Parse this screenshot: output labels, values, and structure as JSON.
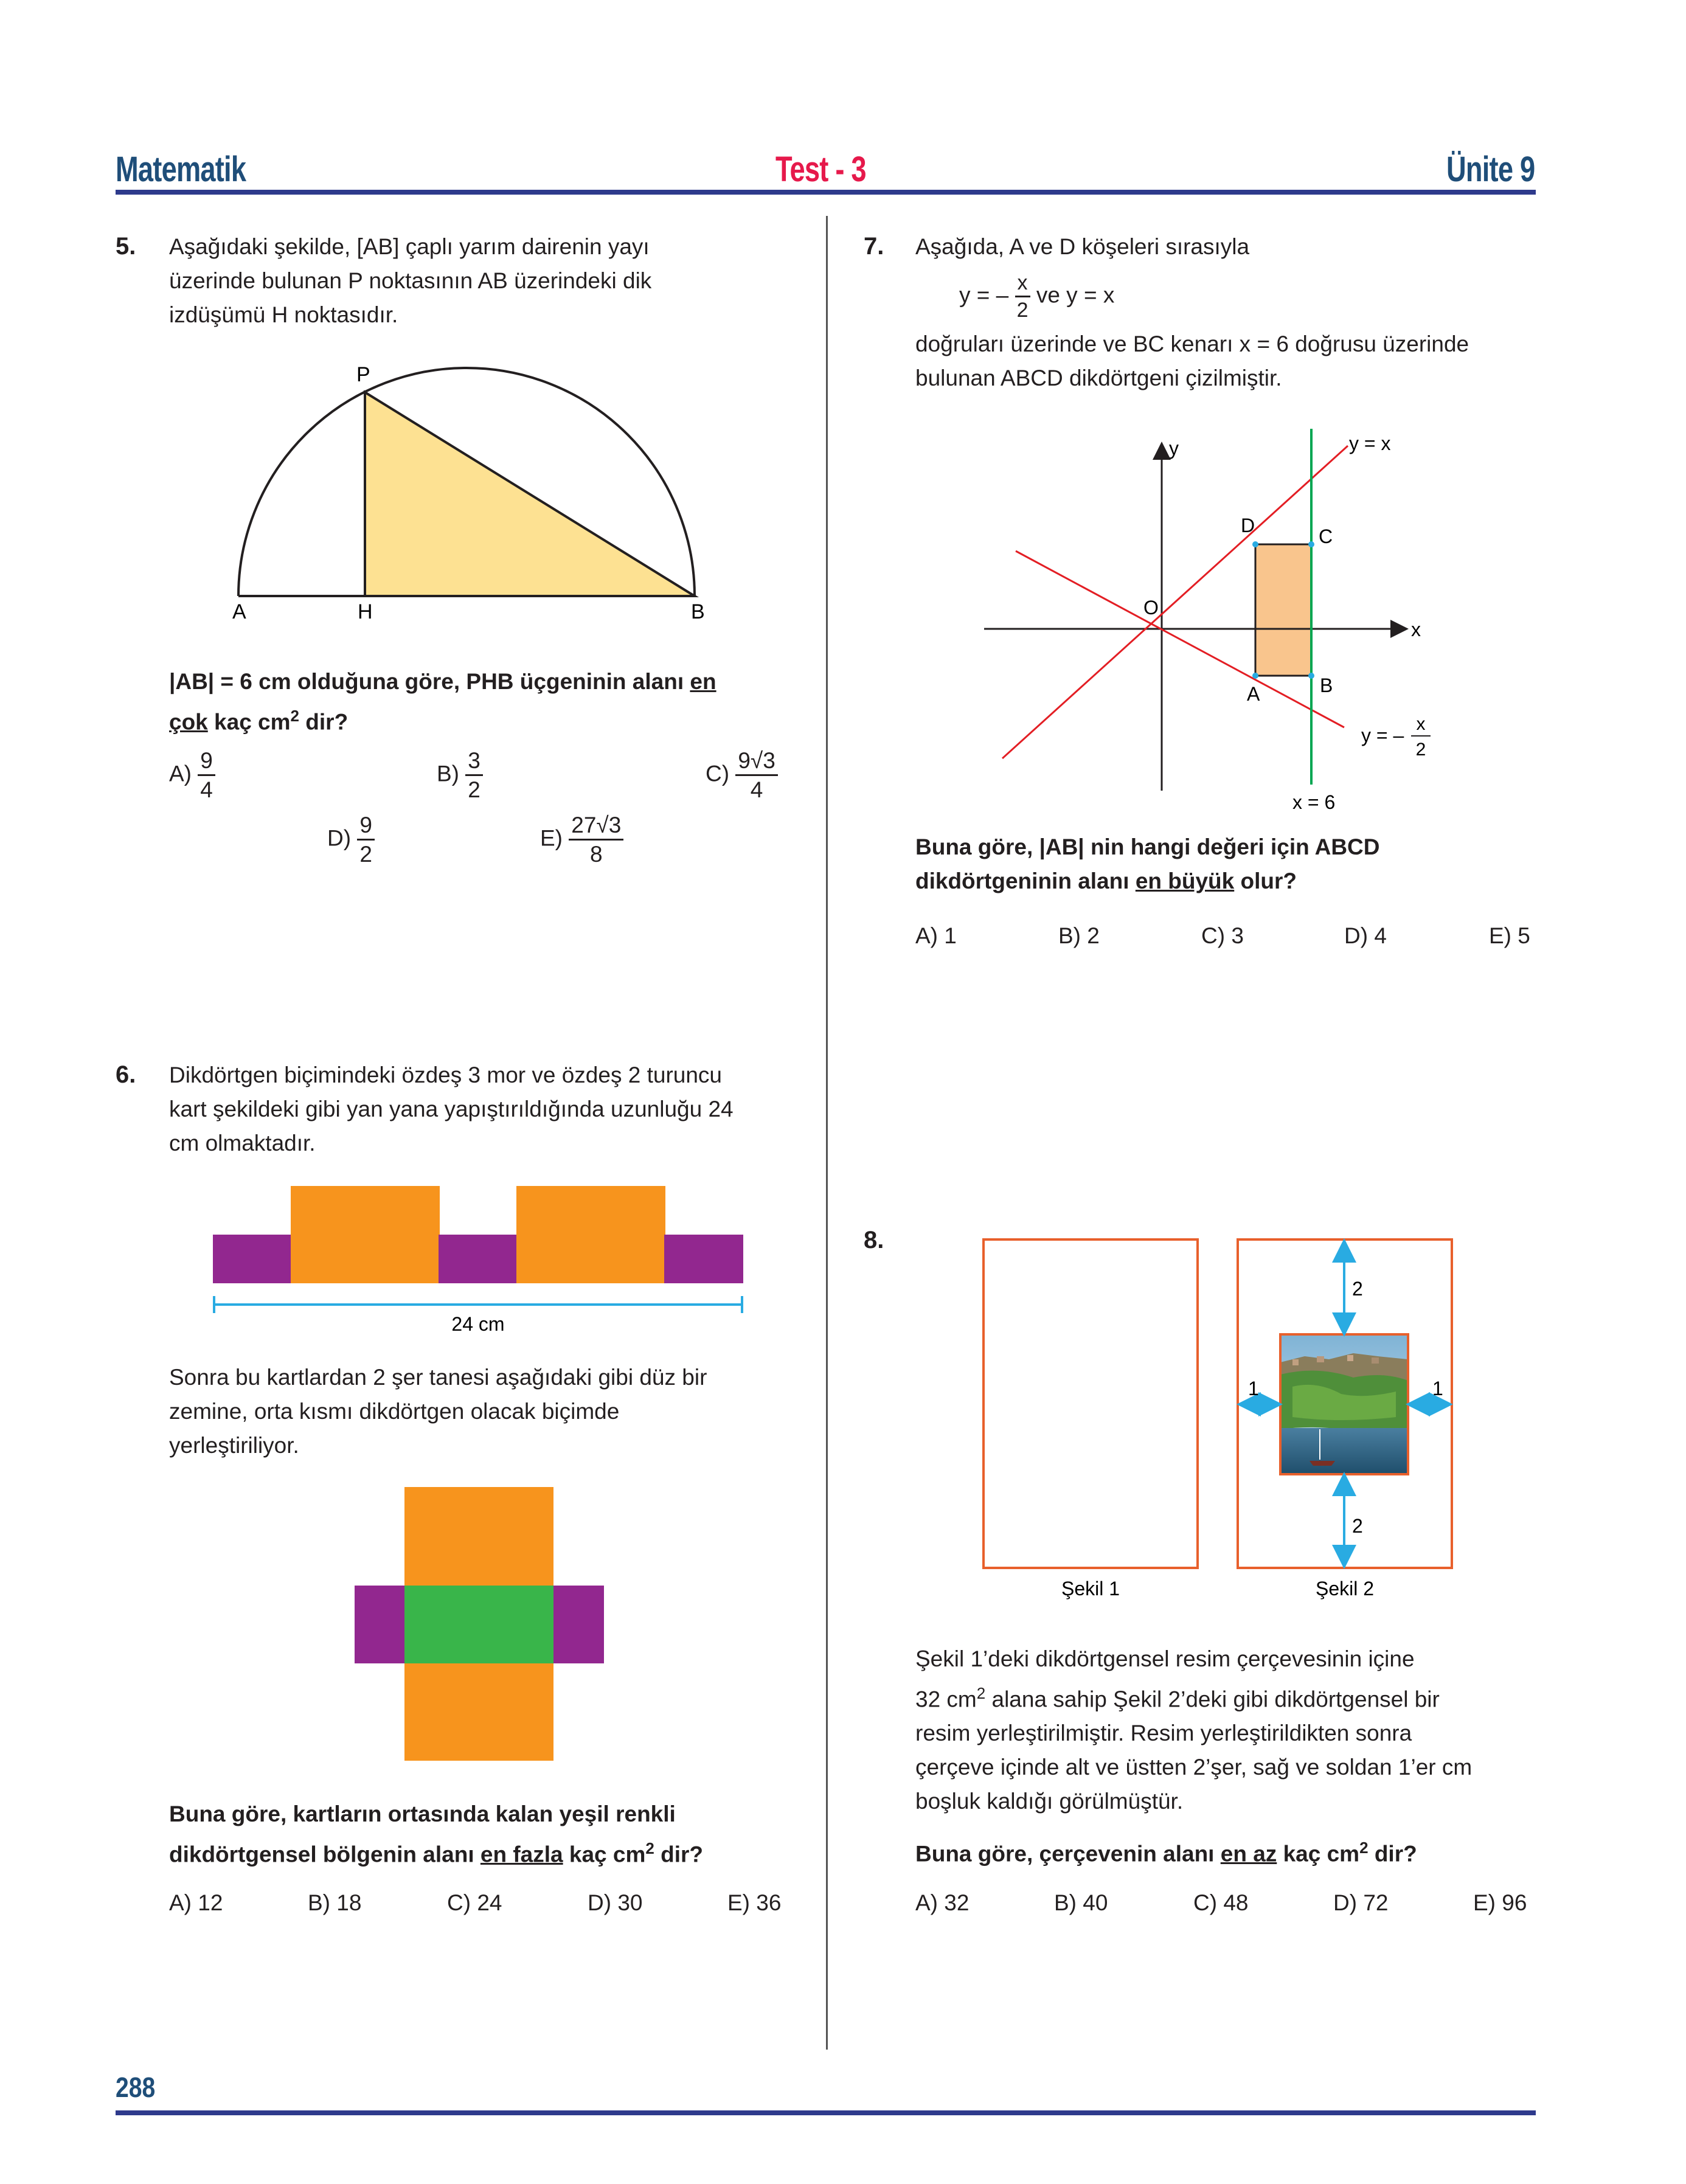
{
  "header": {
    "left": "Matematik",
    "center": "Test - 3",
    "right": "Ünite 9"
  },
  "page_number": "288",
  "q5": {
    "num": "5.",
    "lines": [
      "Aşağıdaki şekilde, [AB] çaplı yarım dairenin yayı",
      "üzerinde bulunan P noktasının AB üzerindeki dik",
      "izdüşümü H noktasıdır."
    ],
    "labels": {
      "P": "P",
      "A": "A",
      "H": "H",
      "B": "B"
    },
    "q1": "|AB| = 6 cm olduğuna göre, PHB üçgeninin alanı ",
    "q1u": "en",
    "q2u": "çok",
    "q2": " kaç cm",
    "q2sup": "2",
    "q2end": " dir?",
    "options": {
      "A": {
        "label": "A)",
        "num": "9",
        "den": "4"
      },
      "B": {
        "label": "B)",
        "num": "3",
        "den": "2"
      },
      "C": {
        "label": "C)",
        "num": "9√3",
        "den": "4"
      },
      "D": {
        "label": "D)",
        "num": "9",
        "den": "2"
      },
      "E": {
        "label": "E)",
        "num": "27√3",
        "den": "8"
      }
    }
  },
  "q6": {
    "num": "6.",
    "lines": [
      "Dikdörtgen biçimindeki özdeş 3 mor ve özdeş 2 turuncu",
      "kart şekildeki gibi yan yana yapıştırıldığında uzunluğu 24",
      "cm olmaktadır."
    ],
    "measure": "24 cm",
    "lines2": [
      "Sonra bu kartlardan 2 şer tanesi aşağıdaki gibi düz bir",
      "zemine, orta kısmı dikdörtgen olacak biçimde",
      "yerleştiriliyor."
    ],
    "q1": "Buna göre, kartların ortasında kalan yeşil renkli",
    "q2a": "dikdörtgensel bölgenin alanı ",
    "q2u": "en fazla",
    "q2b": " kaç cm",
    "q2sup": "2",
    "q2end": " dir?",
    "options": [
      "A) 12",
      "B) 18",
      "C) 24",
      "D) 30",
      "E) 36"
    ],
    "colors": {
      "purple": "#92278f",
      "orange": "#f7941d",
      "green": "#39b54a"
    }
  },
  "q7": {
    "num": "7.",
    "line1": "Aşağıda, A ve D köşeleri sırasıyla",
    "eq_pre": "y = –",
    "eq_num": "x",
    "eq_den": "2",
    "eq_post": "ve y = x",
    "lines": [
      "doğruları üzerinde ve BC kenarı x = 6 doğrusu üzerinde",
      "bulunan ABCD dikdörtgeni çizilmiştir."
    ],
    "graph": {
      "y_axis": "y",
      "x_axis": "x",
      "origin": "O",
      "line1": "y = x",
      "line2_pre": "y = –",
      "line2_num": "x",
      "line2_den": "2",
      "vline": "x = 6",
      "D": "D",
      "C": "C",
      "A": "A",
      "B": "B"
    },
    "q1a": "Buna göre, |AB| nin hangi değeri için ABCD",
    "q2a": "dikdörtgeninin alanı ",
    "q2u": "en büyük",
    "q2b": " olur?",
    "options": [
      "A) 1",
      "B) 2",
      "C) 3",
      "D) 4",
      "E) 5"
    ],
    "colors": {
      "red": "#e31e24",
      "green": "#00a651",
      "rect": "#f9c58d"
    }
  },
  "q8": {
    "num": "8.",
    "fig1": "Şekil 1",
    "fig2": "Şekil 2",
    "dims": {
      "top": "2",
      "bottom": "2",
      "left": "1",
      "right": "1"
    },
    "l1": "Şekil 1’deki dikdörtgensel resim çerçevesinin içine",
    "l2a": "32 cm",
    "l2sup": "2",
    "l2b": " alana sahip Şekil 2’deki gibi dikdörtgensel bir",
    "lines": [
      "resim yerleştirilmiştir. Resim yerleştirildikten sonra",
      "çerçeve içinde alt ve üstten 2’şer, sağ ve soldan 1’er cm",
      "boşluk kaldığı görülmüştür."
    ],
    "q1": "Buna göre, çerçevenin alanı ",
    "q1u": "en az",
    "q1b": " kaç cm",
    "q1sup": "2",
    "q1end": " dir?",
    "options": [
      "A) 32",
      "B) 40",
      "C) 48",
      "D) 72",
      "E) 96"
    ],
    "colors": {
      "frame": "#e8602c",
      "arrow": "#29abe2"
    }
  }
}
